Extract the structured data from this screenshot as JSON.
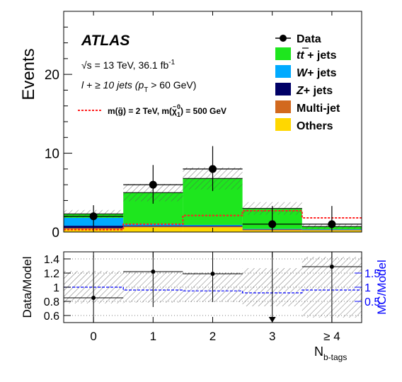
{
  "chart_data": [
    {
      "type": "bar",
      "stacked": true,
      "categories": [
        "0",
        "1",
        "2",
        "3",
        "≥ 4"
      ],
      "ylabel": "Events",
      "ylim": [
        0,
        28
      ],
      "yticks": [
        "0",
        "10",
        "20"
      ],
      "experiment": "ATLAS",
      "energy_label": "√s = 13 TeV, 36.1 fb",
      "energy_sup": "-1",
      "selection_label": "l + ≥ 10 jets (p",
      "selection_sub": "T",
      "selection_tail": " > 60 GeV)",
      "signal_label": "m(g̃) = 2 TeV, m(χ̃",
      "signal_sup": "0",
      "signal_sub": "1",
      "signal_tail": ") = 500 GeV",
      "colors": {
        "ttbar": "#1ee61e",
        "wjets": "#00aaff",
        "zjets": "#000066",
        "multijet": "#d2691e",
        "others": "#ffd700",
        "signal": "#ff2020",
        "data": "#000000"
      },
      "series": [
        {
          "name": "Others",
          "key": "others",
          "values": [
            0.4,
            0.6,
            0.6,
            0.2,
            0.2
          ]
        },
        {
          "name": "Multi-jet",
          "key": "multijet",
          "values": [
            0.1,
            0.1,
            0.1,
            0.1,
            0.05
          ]
        },
        {
          "name": "Z+ jets",
          "key": "zjets",
          "values": [
            0.3,
            0.1,
            0.1,
            0.05,
            0.05
          ]
        },
        {
          "name": "W+ jets",
          "key": "wjets",
          "values": [
            1.0,
            0.2,
            0.1,
            0.05,
            0.05
          ]
        },
        {
          "name": "t t̄ + jets",
          "key": "ttbar",
          "values": [
            0.5,
            4.0,
            5.9,
            2.6,
            0.35
          ]
        }
      ],
      "data": {
        "name": "Data",
        "values": [
          2,
          6,
          8,
          1,
          1
        ],
        "err_low": [
          1.3,
          2.4,
          2.8,
          0.8,
          0.8
        ],
        "err_high": [
          1.4,
          2.5,
          2.9,
          2.3,
          2.3
        ]
      },
      "mc_total": [
        2.3,
        5.0,
        6.8,
        3.0,
        0.7
      ],
      "mc_unc": [
        0.5,
        1.1,
        1.4,
        0.8,
        0.3
      ],
      "signal": [
        0.3,
        1.0,
        2.1,
        2.7,
        1.8
      ],
      "legend": {
        "data": "Data",
        "ttbar_t1": "t",
        "ttbar_t2": "t",
        "ttbar_rest": " + jets",
        "wjets_w": "W",
        "wjets_rest": "+ jets",
        "zjets_z": "Z",
        "zjets_rest": "+ jets",
        "multijet": "Multi-jet",
        "others": "Others"
      }
    },
    {
      "type": "line",
      "xlabel_main": "N",
      "xlabel_sub": "b-tags",
      "ylabel": "Data/Model",
      "ylim": [
        0.5,
        1.5
      ],
      "yticks": [
        "0.6",
        "0.8",
        "1",
        "1.2",
        "1.4"
      ],
      "y2label": "MC/Model",
      "y2ticks": [
        "0.5",
        "1",
        "1.5"
      ],
      "ratio": [
        0.85,
        1.22,
        1.19,
        null,
        1.29
      ],
      "ratio_err_low": [
        0.55,
        0.5,
        0.4,
        0,
        0.9
      ],
      "ratio_err_high": [
        0.6,
        0.5,
        0.45,
        0,
        0.5
      ],
      "offscale_low": [
        false,
        false,
        false,
        true,
        false
      ],
      "mc_unc_rel": [
        0.23,
        0.22,
        0.21,
        0.27,
        0.43
      ],
      "mc_ratio": [
        1.0,
        0.9,
        0.87,
        0.8,
        0.9
      ],
      "y2_color": "#0000ff"
    }
  ]
}
